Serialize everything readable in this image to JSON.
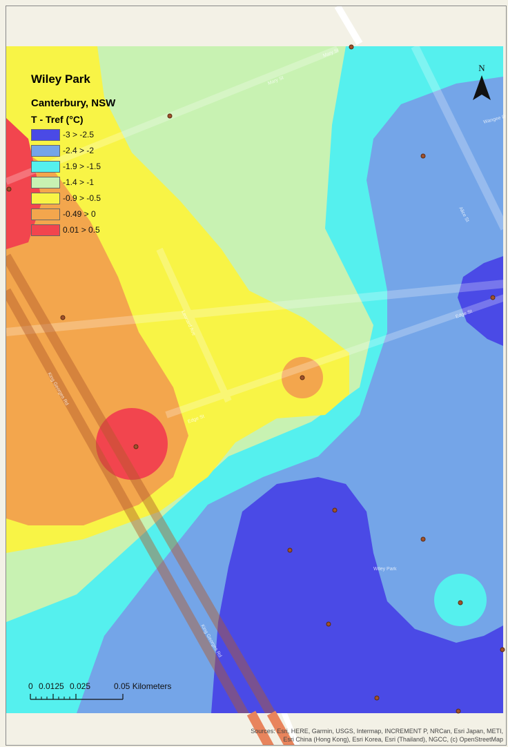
{
  "map": {
    "title": "Wiley Park",
    "subtitle": "Canterbury, NSW",
    "legend_title": "T - Tref (°C)",
    "legend": [
      {
        "label": "-3 > -2.5",
        "color": "#4a4ae6"
      },
      {
        "label": "-2.4 > -2",
        "color": "#74a5e8"
      },
      {
        "label": "-1.9 > -1.5",
        "color": "#55f0ee"
      },
      {
        "label": "-1.4 > -1",
        "color": "#c8f2b2"
      },
      {
        "label": "-0.9 > -0.5",
        "color": "#f8f446"
      },
      {
        "label": "-0.49 > 0",
        "color": "#f3a64d"
      },
      {
        "label": "0.01 > 0.5",
        "color": "#f2454e"
      }
    ],
    "north_label": "N",
    "scale": {
      "ticks": [
        "0",
        "0.0125",
        "0.025",
        "0.05 Kilometers"
      ]
    },
    "streets": [
      "Mary St",
      "Mary St",
      "Alice St",
      "Edge St",
      "Edge St",
      "Leonard Ave",
      "King Georges Rd",
      "King Georges Rd",
      "Wiley Park",
      "Wangee Rd"
    ],
    "attribution": "Sources: Esri, HERE, Garmin, USGS, Intermap, INCREMENT P, NRCan, Esri Japan, METI, Esri China (Hong Kong), Esri Korea, Esri (Thailand), NGCC, (c) OpenStreetMap contributors, and the GIS User Community"
  }
}
